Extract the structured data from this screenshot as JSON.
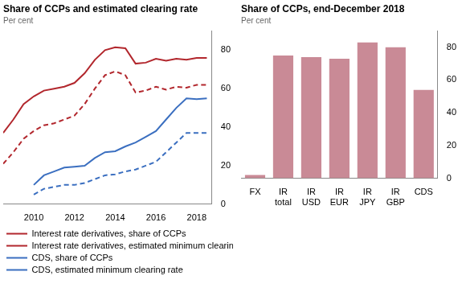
{
  "chart_data": [
    {
      "type": "line",
      "title": "Share of CCPs and estimated clearing rate",
      "y_label": "Per cent",
      "x": [
        2008.5,
        2009,
        2009.5,
        2010,
        2010.5,
        2011,
        2011.5,
        2012,
        2012.5,
        2013,
        2013.5,
        2014,
        2014.5,
        2015,
        2015.5,
        2016,
        2016.5,
        2017,
        2017.5,
        2018,
        2018.5
      ],
      "series": [
        {
          "name": "Interest rate derivatives, share of CCPs",
          "color": "#b2272d",
          "line_style": "solid",
          "values": [
            37,
            44,
            52,
            56,
            59,
            60,
            61,
            63,
            68,
            75,
            80,
            81.5,
            81,
            73,
            73.5,
            75.5,
            74.5,
            75.5,
            75,
            76,
            76
          ]
        },
        {
          "name": "Interest rate derivatives, estimated minimum clearing rate",
          "color": "#b2272d",
          "line_style": "dashed",
          "values": [
            21,
            27,
            34,
            38,
            41,
            42,
            44,
            46,
            52,
            60,
            67,
            69,
            67,
            58,
            59,
            61,
            59.5,
            61,
            60.5,
            62,
            62
          ]
        },
        {
          "name": "CDS, share of CCPs",
          "color": "#3b6fc0",
          "line_style": "solid",
          "values": [
            null,
            null,
            null,
            10,
            15,
            17,
            19,
            19.5,
            20,
            24,
            27,
            27.5,
            30,
            32,
            35,
            38,
            44,
            50,
            55,
            54.5,
            55
          ]
        },
        {
          "name": "CDS, estimated minimum clearing rate",
          "color": "#3b6fc0",
          "line_style": "dashed",
          "values": [
            null,
            null,
            null,
            5,
            8,
            9,
            10,
            10,
            11,
            13,
            15,
            15.5,
            17,
            18,
            20,
            22,
            27,
            32,
            37,
            37,
            37
          ]
        }
      ],
      "xlim": [
        2008.5,
        2018.75
      ],
      "xticks": [
        2010,
        2012,
        2014,
        2016,
        2018
      ],
      "ylim": [
        0,
        90
      ],
      "yticks": [
        0,
        20,
        40,
        60,
        80
      ],
      "grid": false,
      "legend": "bottom"
    },
    {
      "type": "bar",
      "title": "Share of CCPs, end-December 2018",
      "y_label": "Per cent",
      "categories": [
        "FX",
        "IR total",
        "IR USD",
        "IR EUR",
        "IR JPY",
        "IR GBP",
        "CDS"
      ],
      "values": [
        2,
        75,
        74,
        73,
        83,
        80,
        54
      ],
      "color": "#c98a96",
      "ylim": [
        0,
        90
      ],
      "yticks": [
        0,
        20,
        40,
        60,
        80
      ],
      "grid": false
    }
  ]
}
